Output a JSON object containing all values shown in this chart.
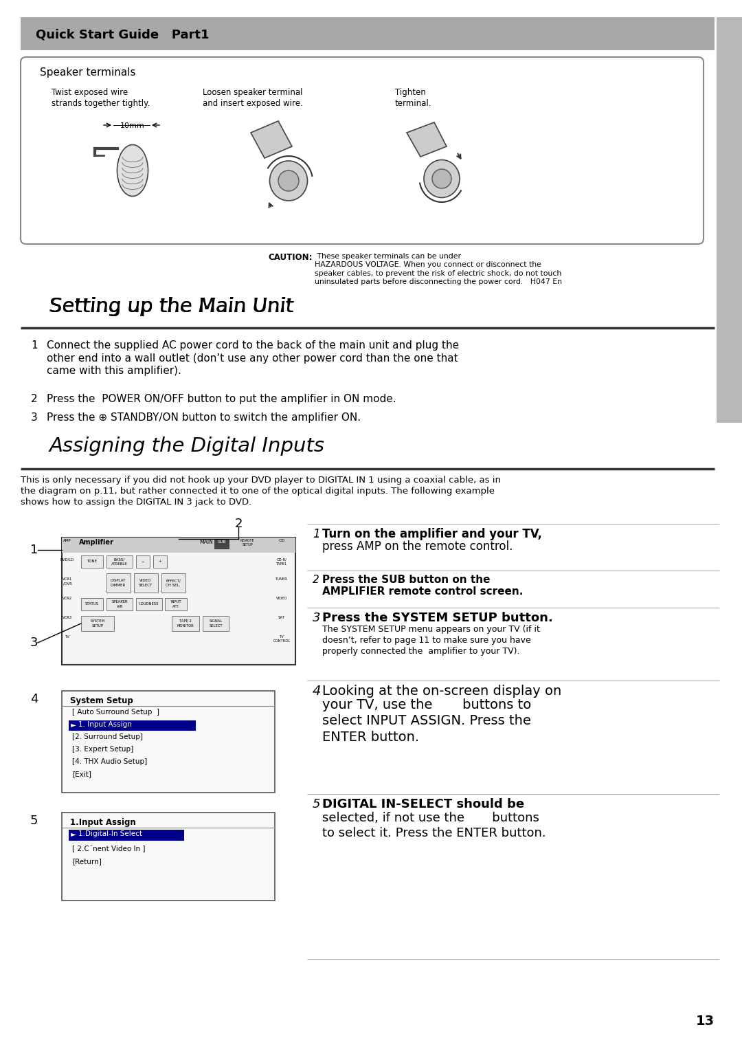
{
  "page_bg": "#ffffff",
  "header_bg": "#a8a8a8",
  "header_text": "Quick Start Guide   Part1",
  "sidebar_color": "#b8b8b8",
  "speaker_box_title": "Speaker terminals",
  "speaker_caption1": "Twist exposed wire\nstrands together tightly.",
  "speaker_caption2": "Loosen speaker terminal\nand insert exposed wire.",
  "speaker_caption3": "Tighten\nterminal.",
  "speaker_10mm": "10mm",
  "caution_bold": "CAUTION:",
  "caution_text": " These speaker terminals can be under\nHAZARDOUS VOLTAGE. When you connect or disconnect the\nspeaker cables, to prevent the risk of electric shock, do not touch\nuninsulated parts before disconnecting the power cord.   H047 En",
  "section1_title": "Setting up the Main Unit",
  "step1_text": "Connect the supplied AC power cord to the back of the main unit and plug the\nother end into a wall outlet (don’t use any other power cord than the one that\ncame with this amplifier).",
  "step2_text": "Press the  POWER ON/OFF button to put the amplifier in ON mode.",
  "step3_text": "Press the ⊕ STANDBY/ON button to switch the amplifier ON.",
  "section2_title": "Assigning the Digital Inputs",
  "section2_intro": "This is only necessary if you did not hook up your DVD player to DIGITAL IN 1 using a coaxial cable, as in\nthe diagram on p.11, but rather connected it to one of the optical digital inputs. The following example\nshows how to assign the DIGITAL IN 3 jack to DVD.",
  "right_step1_italic": "1",
  "right_step1_text1": "Turn on the amplifier and your TV,",
  "right_step1_text2": "press AMP on the remote control.",
  "right_step2_italic": "2",
  "right_step2_text1": "Press the SUB button on the",
  "right_step2_text2": "AMPLIFIER remote control screen.",
  "right_step3_italic": "3",
  "right_step3_text1": "Press the SYSTEM SETUP button.",
  "right_step3_detail": "The SYSTEM SETUP menu appears on your TV (if it\ndoesn’t, refer to page 11 to make sure you have\nproperly connected the  amplifier to your TV).",
  "right_step4_italic": "4",
  "right_step4_text1": "Looking at the on-screen display on",
  "right_step4_text2": "your TV, use the       buttons to\nselect INPUT ASSIGN. Press the\nENTER button.",
  "right_step5_italic": "5",
  "right_step5_text1": "DIGITAL IN-SELECT should be",
  "right_step5_text2": "selected, if not use the       buttons\nto select it. Press the ENTER button.",
  "page_num": "13",
  "sys_setup_title": "System Setup",
  "sys_setup_lines": [
    "[ Auto Surround Setup  ]",
    "1. Input Assign",
    "[2. Surround Setup]",
    "[3. Expert Setup]",
    "[4. THX Audio Setup]",
    "[Exit]"
  ],
  "sys_setup_selected": 1,
  "input_assign_title": "1.Input Assign",
  "input_assign_lines": [
    "1.Digital-In Select",
    "[ 2.C´nent Video In ]",
    "[Return]"
  ],
  "input_assign_selected": 0
}
